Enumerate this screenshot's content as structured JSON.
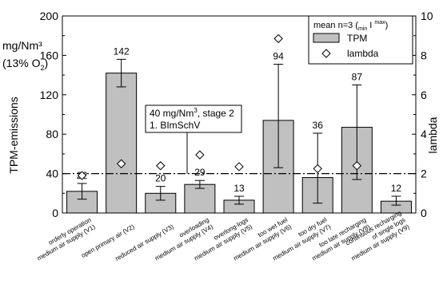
{
  "chart_data": {
    "type": "bar",
    "categories": [
      [
        "orderly operation",
        "medium air supply (V1)"
      ],
      [
        "open primary air (V2)"
      ],
      [
        "reduced air supply (V3)"
      ],
      [
        "overloading",
        "medium air supply (V4)"
      ],
      [
        "overlong-logs",
        "medium air supply (V5)"
      ],
      [
        "too wet fuel",
        "medium air supply (V6)"
      ],
      [
        "too dry fuel",
        "medium air supply (V7)"
      ],
      [
        "too late recharging",
        "medium air supply (V8)"
      ],
      [
        "continuous recharging",
        "of single logs",
        "medium air supply (V9)"
      ]
    ],
    "series": [
      {
        "name": "TPM",
        "values": [
          22,
          142,
          20,
          29,
          13,
          94,
          36,
          87,
          12
        ],
        "labels": [
          "22",
          "142",
          "20",
          "29",
          "13",
          "94",
          "36",
          "87",
          "12"
        ],
        "error_min": [
          14,
          128,
          13,
          25,
          9,
          46,
          10,
          34,
          8
        ],
        "error_max": [
          30,
          156,
          27,
          33,
          17,
          151,
          81,
          130,
          17
        ]
      },
      {
        "name": "lambda",
        "axis": "right",
        "values": [
          1.9,
          2.5,
          2.4,
          2.95,
          2.35,
          8.85,
          2.25,
          2.4,
          null
        ]
      }
    ],
    "y_left": {
      "label": "TPM-emissions",
      "unit_line1": "mg/Nm³",
      "unit_line2_prefix": "(13% O",
      "unit_line2_sub": "2",
      "unit_line2_suffix": ")",
      "ylim": [
        0,
        200
      ],
      "ticks": [
        "0",
        "40",
        "80",
        "120",
        "160",
        "200"
      ]
    },
    "y_right": {
      "label": "lambda",
      "ylim": [
        0,
        10
      ],
      "ticks": [
        "0",
        "2",
        "4",
        "6",
        "8",
        "10"
      ]
    },
    "reference_line": {
      "value": 40,
      "label_line1_prefix": "40 mg/Nm",
      "label_line1_sup": "3",
      "label_line1_suffix": ", stage 2",
      "label_line2": "1. BImSchV"
    },
    "legend": {
      "placement": "top-right",
      "title_prefix": "mean n=3 (",
      "title_min": "min",
      "title_max": "max",
      "title_suffix": ")",
      "items": [
        "TPM",
        "lambda"
      ]
    },
    "colors": {
      "bar": "#c0c0c0",
      "stroke": "#000000",
      "marker_fill": "#ffffff"
    },
    "grid": false
  }
}
